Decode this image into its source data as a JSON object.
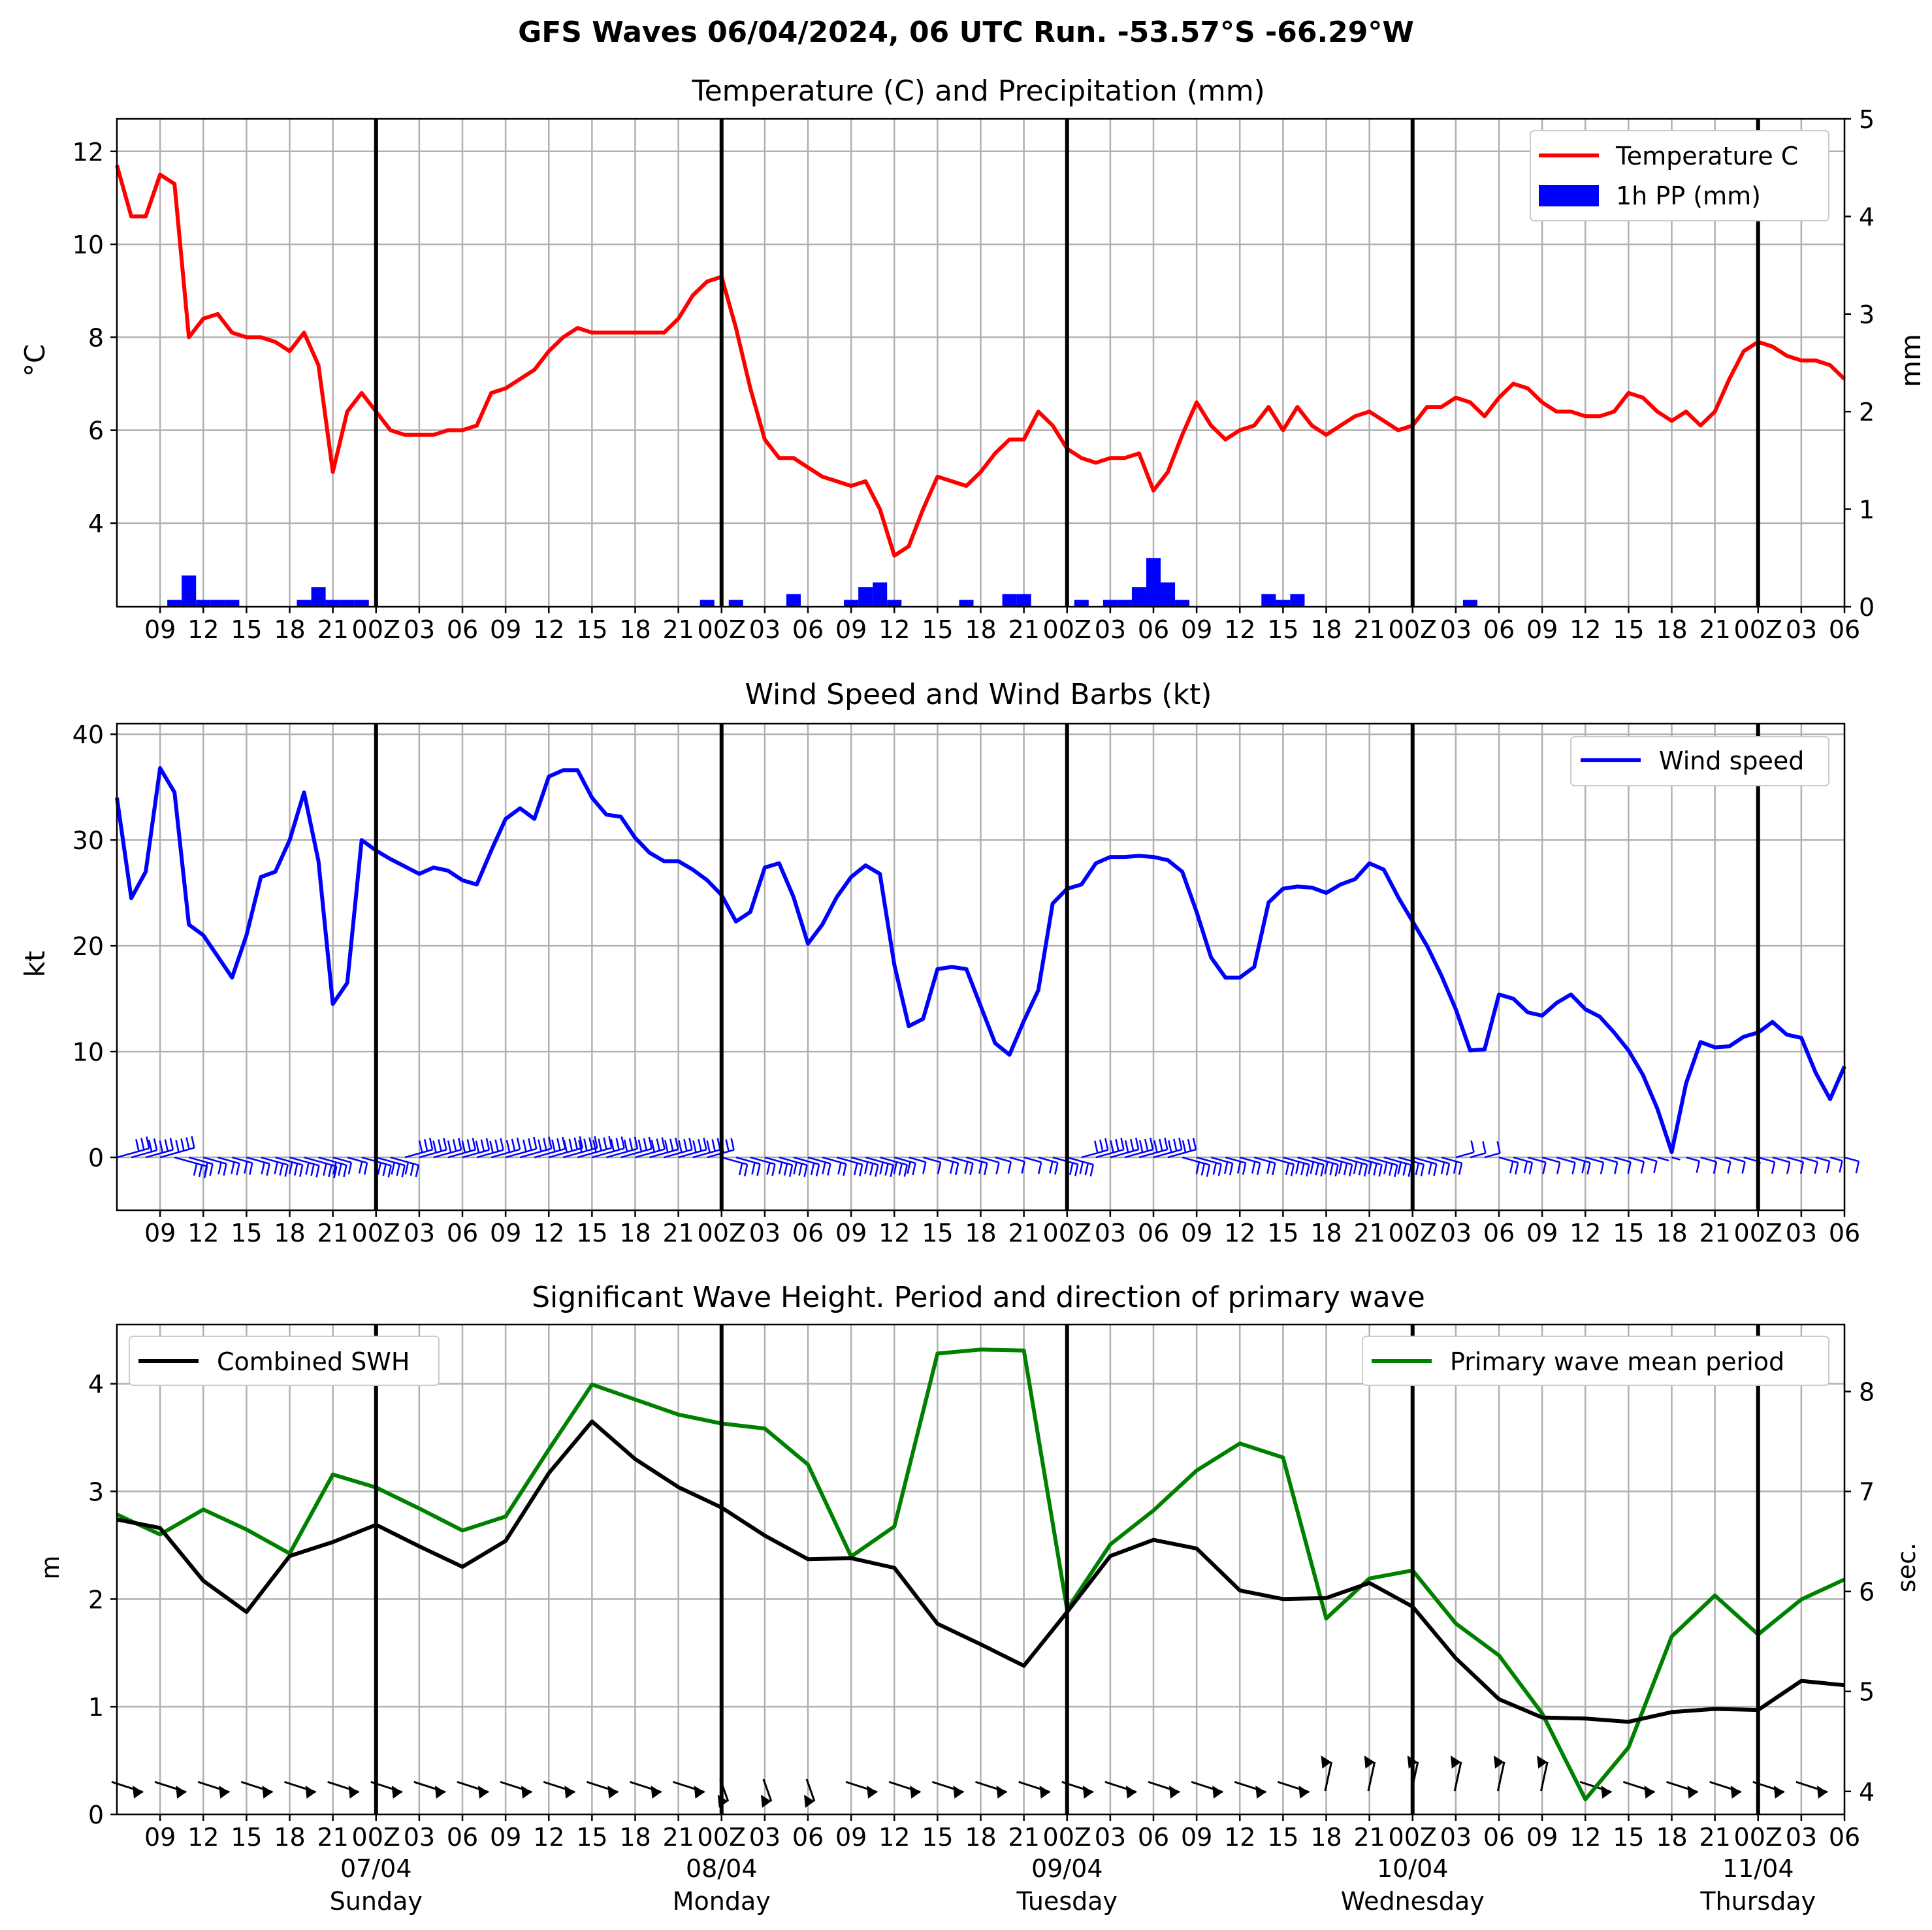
{
  "suptitle": "GFS Waves 06/04/2024, 06 UTC Run. -53.57°S -66.29°W",
  "x_ticks": [
    "09",
    "12",
    "15",
    "18",
    "21",
    "00Z",
    "03",
    "06",
    "09",
    "12",
    "15",
    "18",
    "21",
    "00Z",
    "03",
    "06",
    "09",
    "12",
    "15",
    "18",
    "21",
    "00Z",
    "03",
    "06",
    "09",
    "12",
    "15",
    "18",
    "21",
    "00Z",
    "03",
    "06",
    "09",
    "12",
    "15",
    "18",
    "21",
    "00Z",
    "03",
    "06"
  ],
  "day_labels": [
    {
      "date": "07/04",
      "day": "Sunday"
    },
    {
      "date": "08/04",
      "day": "Monday"
    },
    {
      "date": "09/04",
      "day": "Tuesday"
    },
    {
      "date": "10/04",
      "day": "Wednesday"
    },
    {
      "date": "11/04",
      "day": "Thursday"
    }
  ],
  "colors": {
    "temperature": "#ff0000",
    "precip": "#0000ff",
    "wind": "#0000ff",
    "swh": "#000000",
    "period": "#008000",
    "grid": "#b0b0b0"
  },
  "chart_data": [
    {
      "type": "line",
      "title": "Temperature (C) and Precipitation (mm)",
      "ylabel": "$^\\circ$C",
      "ylabel2": "mm",
      "x_unit": "hours after 06/04/2024 06 UTC",
      "xlim": [
        0,
        120
      ],
      "ylim": [
        2.2,
        12.7
      ],
      "yticks": [
        4,
        6,
        8,
        10,
        12
      ],
      "ylim2": [
        0,
        5
      ],
      "yticks2": [
        0,
        1,
        2,
        3,
        4,
        5
      ],
      "legend": "top-right",
      "series": [
        {
          "name": "Temperature C",
          "axis": "left",
          "x": [
            0,
            1,
            2,
            3,
            4,
            5,
            6,
            7,
            8,
            9,
            10,
            11,
            12,
            13,
            14,
            15,
            16,
            17,
            18,
            19,
            20,
            21,
            22,
            23,
            24,
            25,
            26,
            27,
            28,
            29,
            30,
            31,
            32,
            33,
            34,
            35,
            36,
            37,
            38,
            39,
            40,
            41,
            42,
            43,
            44,
            45,
            46,
            47,
            48,
            49,
            50,
            51,
            52,
            53,
            54,
            55,
            56,
            57,
            58,
            59,
            60,
            61,
            62,
            63,
            64,
            65,
            66,
            67,
            68,
            69,
            70,
            71,
            72,
            73,
            74,
            75,
            76,
            77,
            78,
            79,
            80,
            81,
            82,
            83,
            84,
            85,
            86,
            87,
            88,
            89,
            90,
            91,
            92,
            93,
            94,
            95,
            96,
            97,
            98,
            99,
            100,
            101,
            102,
            103,
            104,
            105,
            106,
            107,
            108,
            109,
            110,
            111,
            112,
            113,
            114,
            115,
            116,
            117,
            118,
            119,
            120
          ],
          "values": [
            11.7,
            10.6,
            10.6,
            11.5,
            11.3,
            8.0,
            8.4,
            8.5,
            8.1,
            8.0,
            8.0,
            7.9,
            7.7,
            8.1,
            7.4,
            5.1,
            6.4,
            6.8,
            6.4,
            6.0,
            5.9,
            5.9,
            5.9,
            6.0,
            6.0,
            6.1,
            6.8,
            6.9,
            7.1,
            7.3,
            7.7,
            8.0,
            8.2,
            8.1,
            8.1,
            8.1,
            8.1,
            8.1,
            8.1,
            8.4,
            8.9,
            9.2,
            9.3,
            8.2,
            6.9,
            5.8,
            5.4,
            5.4,
            5.2,
            5.0,
            4.9,
            4.8,
            4.9,
            4.3,
            3.3,
            3.5,
            4.3,
            5.0,
            4.9,
            4.8,
            5.1,
            5.5,
            5.8,
            5.8,
            6.4,
            6.1,
            5.6,
            5.4,
            5.3,
            5.4,
            5.4,
            5.5,
            4.7,
            5.1,
            5.9,
            6.6,
            6.1,
            5.8,
            6.0,
            6.1,
            6.5,
            6.0,
            6.5,
            6.1,
            5.9,
            6.1,
            6.3,
            6.4,
            6.2,
            6.0,
            6.1,
            6.5,
            6.5,
            6.7,
            6.6,
            6.3,
            6.7,
            7.0,
            6.9,
            6.6,
            6.4,
            6.4,
            6.3,
            6.3,
            6.4,
            6.8,
            6.7,
            6.4,
            6.2,
            6.4,
            6.1,
            6.4,
            7.1,
            7.7,
            7.9,
            7.8,
            7.6,
            7.5,
            7.5,
            7.4,
            7.1
          ]
        },
        {
          "name": "1h PP (mm)",
          "axis": "right",
          "type": "bar",
          "x": [
            4,
            5,
            6,
            7,
            8,
            13,
            14,
            15,
            16,
            17,
            18,
            19,
            20,
            41,
            43,
            47,
            51,
            52,
            53,
            54,
            56,
            59,
            62,
            63,
            67,
            69,
            70,
            71,
            72,
            73,
            74,
            80,
            81,
            82,
            83,
            94
          ],
          "values": [
            0.07,
            0.32,
            0.07,
            0.07,
            0.07,
            0.07,
            0.2,
            0.07,
            0.07,
            0.07,
            0,
            0,
            0,
            0.07,
            0.07,
            0.13,
            0.07,
            0.2,
            0.25,
            0.07,
            0,
            0.07,
            0.13,
            0.13,
            0.07,
            0.07,
            0.07,
            0.2,
            0.5,
            0.25,
            0.07,
            0.13,
            0.07,
            0.13,
            0,
            0.07
          ]
        }
      ]
    },
    {
      "type": "line",
      "title": "Wind Speed and Wind Barbs (kt)",
      "ylabel": "kt",
      "x_unit": "hours after 06/04/2024 06 UTC",
      "xlim": [
        0,
        120
      ],
      "ylim": [
        -5,
        41
      ],
      "yticks": [
        0,
        10,
        20,
        30,
        40
      ],
      "legend": "top-right",
      "series": [
        {
          "name": "Wind speed",
          "x": [
            0,
            1,
            2,
            3,
            4,
            5,
            6,
            7,
            8,
            9,
            10,
            11,
            12,
            13,
            14,
            15,
            16,
            17,
            18,
            19,
            20,
            21,
            22,
            23,
            24,
            25,
            26,
            27,
            28,
            29,
            30,
            31,
            32,
            33,
            34,
            35,
            36,
            37,
            38,
            39,
            40,
            41,
            42,
            43,
            44,
            45,
            46,
            47,
            48,
            49,
            50,
            51,
            52,
            53,
            54,
            55,
            56,
            57,
            58,
            59,
            60,
            61,
            62,
            63,
            64,
            65,
            66,
            67,
            68,
            69,
            70,
            71,
            72,
            73,
            74,
            75,
            76,
            77,
            78,
            79,
            80,
            81,
            82,
            83,
            84,
            85,
            86,
            87,
            88,
            89,
            90,
            91,
            92,
            93,
            94,
            95,
            96,
            97,
            98,
            99,
            100,
            101,
            102,
            103,
            104,
            105,
            106,
            107,
            108,
            109,
            110,
            111,
            112,
            113,
            114,
            115,
            116,
            117,
            118,
            119,
            120
          ],
          "values": [
            34,
            24.5,
            27,
            36.8,
            34.5,
            22,
            21,
            19,
            17,
            21,
            26.5,
            27,
            30,
            34.5,
            28,
            14.5,
            16.5,
            30,
            29,
            28.2,
            27.5,
            26.8,
            27.4,
            27.1,
            26.2,
            25.8,
            29,
            32,
            33,
            32,
            36,
            36.6,
            36.6,
            34,
            32.4,
            32.2,
            30.2,
            28.8,
            28,
            28,
            27.2,
            26.2,
            24.8,
            22.3,
            23.2,
            27.4,
            27.8,
            24.6,
            20.2,
            22,
            24.6,
            26.5,
            27.6,
            26.8,
            18.2,
            12.4,
            13.1,
            17.8,
            18,
            17.8,
            14.3,
            10.8,
            9.7,
            12.9,
            15.8,
            24,
            25.4,
            25.8,
            27.8,
            28.4,
            28.4,
            28.5,
            28.4,
            28.1,
            27,
            23.2,
            18.9,
            17,
            17,
            18,
            24.1,
            25.4,
            25.6,
            25.5,
            25,
            25.8,
            26.3,
            27.8,
            27.2,
            24.6,
            22.3,
            20,
            17.2,
            14,
            10.1,
            10.2,
            15.4,
            15,
            13.7,
            13.4,
            14.6,
            15.4,
            14,
            13.3,
            11.8,
            10.1,
            7.8,
            4.6,
            0.5,
            7,
            10.9,
            10.4,
            10.5,
            11.4,
            11.8,
            12.8,
            11.6,
            11.3,
            8,
            5.5,
            8.6
          ]
        }
      ],
      "barbs": "wind barbs along y = 0 for each hour"
    },
    {
      "type": "line",
      "title": "Significant Wave Height. Period and direction of primary wave",
      "ylabel": "m",
      "ylabel2": "sec.",
      "x_unit": "hours after 06/04/2024 06 UTC",
      "xlim": [
        0,
        120
      ],
      "ylim": [
        0,
        4.55
      ],
      "yticks": [
        0,
        1,
        2,
        3,
        4
      ],
      "ylim2": [
        3.77,
        8.67
      ],
      "yticks2": [
        4,
        5,
        6,
        7,
        8
      ],
      "legend": [
        "top-left",
        "top-right"
      ],
      "series": [
        {
          "name": "Combined SWH",
          "axis": "left",
          "x": [
            0,
            3,
            6,
            9,
            12,
            15,
            18,
            21,
            24,
            27,
            30,
            33,
            36,
            39,
            42,
            45,
            48,
            51,
            54,
            57,
            60,
            63,
            66,
            69,
            72,
            75,
            78,
            81,
            84,
            87,
            90,
            93,
            96,
            99,
            102,
            105,
            108,
            111,
            114,
            117,
            120
          ],
          "values": [
            2.74,
            2.66,
            2.17,
            1.88,
            2.4,
            2.53,
            2.69,
            2.49,
            2.3,
            2.54,
            3.17,
            3.65,
            3.3,
            3.04,
            2.85,
            2.59,
            2.37,
            2.38,
            2.29,
            1.77,
            1.58,
            1.38,
            1.88,
            2.4,
            2.55,
            2.47,
            2.08,
            2,
            2.01,
            2.15,
            1.93,
            1.45,
            1.07,
            0.9,
            0.89,
            0.86,
            0.95,
            0.98,
            0.97,
            1.24,
            1.2
          ]
        },
        {
          "name": "Primary wave mean period",
          "axis": "right",
          "x": [
            0,
            3,
            6,
            9,
            12,
            15,
            18,
            21,
            24,
            27,
            30,
            33,
            36,
            39,
            42,
            45,
            48,
            51,
            54,
            57,
            60,
            63,
            66,
            69,
            72,
            75,
            78,
            81,
            84,
            87,
            90,
            93,
            96,
            99,
            102,
            105,
            108,
            111,
            114,
            117,
            120
          ],
          "values": [
            6.77,
            6.57,
            6.82,
            6.62,
            6.38,
            7.17,
            7.04,
            6.83,
            6.61,
            6.75,
            7.42,
            8.07,
            7.92,
            7.77,
            7.68,
            7.63,
            7.27,
            6.35,
            6.65,
            8.38,
            8.42,
            8.41,
            5.82,
            6.47,
            6.81,
            7.21,
            7.48,
            7.34,
            5.73,
            6.13,
            6.21,
            5.68,
            5.36,
            4.78,
            3.92,
            4.44,
            5.55,
            5.96,
            5.57,
            5.92,
            6.12
          ]
        }
      ],
      "direction_arrows": "primary wave direction arrows near y = 0.3 m every 3 h"
    }
  ]
}
